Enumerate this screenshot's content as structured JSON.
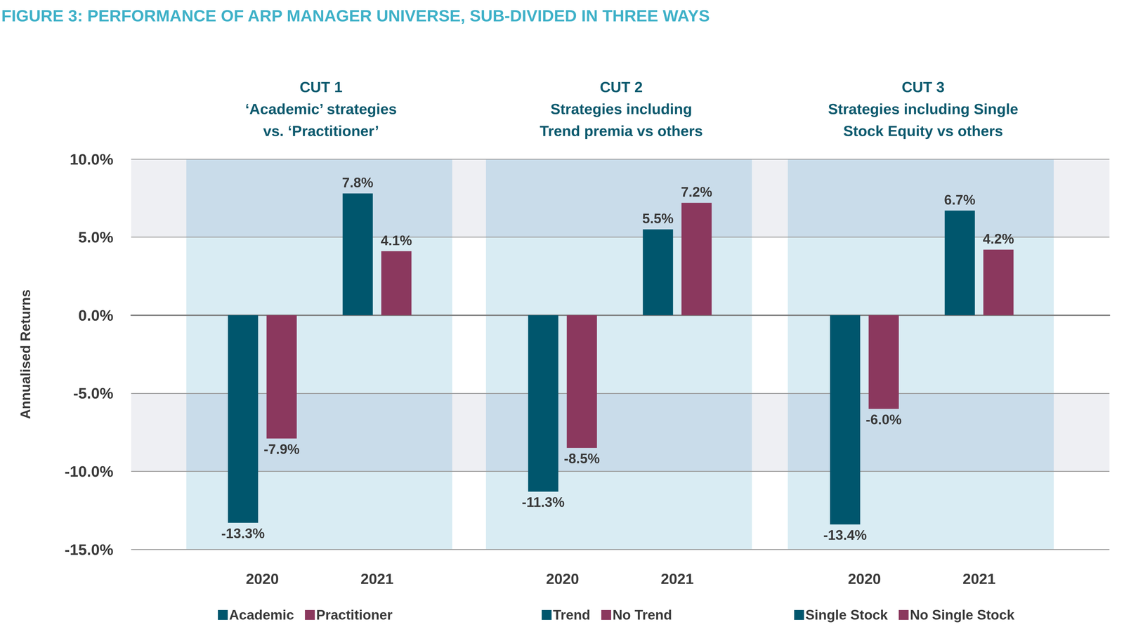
{
  "title": "FIGURE 3: PERFORMANCE OF ARP MANAGER UNIVERSE, SUB-DIVIDED IN THREE WAYS",
  "chart_data": [
    {
      "type": "bar",
      "title": "CUT 1",
      "subtitle": "‘Academic’ strategies\nvs. ‘Practitioner’",
      "ylabel": "Annualised Returns",
      "categories": [
        "2020",
        "2021"
      ],
      "series": [
        {
          "name": "Academic",
          "color": "#00566d",
          "values": [
            -13.3,
            7.8
          ],
          "value_labels": [
            "-13.3%",
            "7.8%"
          ]
        },
        {
          "name": "Practitioner",
          "color": "#8b385e",
          "values": [
            -7.9,
            4.1
          ],
          "value_labels": [
            "-7.9%",
            "4.1%"
          ]
        }
      ],
      "ylim": [
        -15,
        10
      ],
      "yticks": [
        {
          "value": -15,
          "label": "-15.0%"
        },
        {
          "value": -10,
          "label": "-10.0%"
        },
        {
          "value": -5,
          "label": "-5.0%"
        },
        {
          "value": 0,
          "label": "0.0%"
        },
        {
          "value": 5,
          "label": "5.0%"
        },
        {
          "value": 10,
          "label": "10.0%"
        }
      ],
      "grid": true,
      "data_labels": true,
      "legend": "bottom"
    },
    {
      "type": "bar",
      "title": "CUT 2",
      "subtitle": "Strategies including\nTrend premia vs others",
      "categories": [
        "2020",
        "2021"
      ],
      "series": [
        {
          "name": "Trend",
          "color": "#00566d",
          "values": [
            -11.3,
            5.5
          ],
          "value_labels": [
            "-11.3%",
            "5.5%"
          ]
        },
        {
          "name": "No Trend",
          "color": "#8b385e",
          "values": [
            -8.5,
            7.2
          ],
          "value_labels": [
            "-8.5%",
            "7.2%"
          ]
        }
      ],
      "ylim": [
        -15,
        10
      ],
      "yticks": [
        {
          "value": -15,
          "label": "-15.0%"
        },
        {
          "value": -10,
          "label": "-10.0%"
        },
        {
          "value": -5,
          "label": "-5.0%"
        },
        {
          "value": 0,
          "label": "0.0%"
        },
        {
          "value": 5,
          "label": "5.0%"
        },
        {
          "value": 10,
          "label": "10.0%"
        }
      ],
      "grid": true,
      "data_labels": true,
      "legend": "bottom",
      "tick_labels": "x"
    },
    {
      "type": "bar",
      "title": "CUT 3",
      "subtitle": "Strategies including Single\nStock Equity vs others",
      "categories": [
        "2020",
        "2021"
      ],
      "series": [
        {
          "name": "Single Stock",
          "color": "#00566d",
          "values": [
            -13.4,
            6.7
          ],
          "value_labels": [
            "-13.4%",
            "6.7%"
          ]
        },
        {
          "name": "No Single Stock",
          "color": "#8b385e",
          "values": [
            -6.0,
            4.2
          ],
          "value_labels": [
            "-6.0%",
            "4.2%"
          ]
        }
      ],
      "ylim": [
        -15,
        10
      ],
      "yticks": [
        {
          "value": -15,
          "label": "-15.0%"
        },
        {
          "value": -10,
          "label": "-10.0%"
        },
        {
          "value": -5,
          "label": "-5.0%"
        },
        {
          "value": 0,
          "label": "0.0%"
        },
        {
          "value": 5,
          "label": "5.0%"
        },
        {
          "value": 10,
          "label": "10.0%"
        }
      ],
      "grid": true,
      "data_labels": true,
      "legend": "bottom",
      "tick_labels": "x"
    }
  ]
}
